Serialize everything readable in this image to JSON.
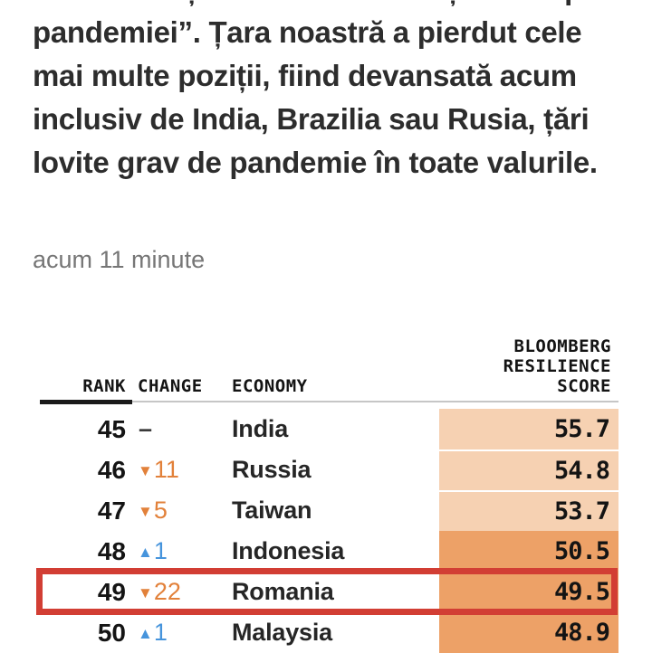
{
  "article": {
    "lines": [
      "bune/rele “țări în care să trăiești în timpul",
      "pandemiei”. Țara noastră a pierdut cele",
      "mai multe poziții, fiind devansată acum",
      "inclusiv de India, Brazilia sau Rusia, țări",
      "lovite grav de pandemie în toate valurile."
    ],
    "timestamp": "acum 11 minute"
  },
  "table": {
    "headers": {
      "rank": "RANK",
      "change": "CHANGE",
      "economy": "ECONOMY",
      "score_lines": [
        "BLOOMBERG",
        "RESILIENCE",
        "SCORE"
      ]
    },
    "rows": [
      {
        "rank": "45",
        "change": "–",
        "direction": "none",
        "economy": "India",
        "score": "55.7",
        "band": "light",
        "highlighted": false
      },
      {
        "rank": "46",
        "change": "11",
        "direction": "down",
        "economy": "Russia",
        "score": "54.8",
        "band": "light",
        "highlighted": false
      },
      {
        "rank": "47",
        "change": "5",
        "direction": "down",
        "economy": "Taiwan",
        "score": "53.7",
        "band": "light",
        "highlighted": false
      },
      {
        "rank": "48",
        "change": "1",
        "direction": "up",
        "economy": "Indonesia",
        "score": "50.5",
        "band": "dark",
        "highlighted": false
      },
      {
        "rank": "49",
        "change": "22",
        "direction": "down",
        "economy": "Romania",
        "score": "49.5",
        "band": "dark",
        "highlighted": true
      },
      {
        "rank": "50",
        "change": "1",
        "direction": "up",
        "economy": "Malaysia",
        "score": "48.9",
        "band": "dark",
        "highlighted": false
      }
    ],
    "colors": {
      "score_light": "#f6d1b2",
      "score_dark": "#eda167",
      "down_arrow": "#e2813a",
      "up_arrow": "#4694dc",
      "highlight_border": "#d23e34"
    }
  },
  "chart_data": {
    "type": "table",
    "title": "Bloomberg Resilience Score",
    "columns": [
      "RANK",
      "CHANGE",
      "ECONOMY",
      "BLOOMBERG RESILIENCE SCORE"
    ],
    "rows": [
      [
        45,
        "0",
        "India",
        55.7
      ],
      [
        46,
        "-11",
        "Russia",
        54.8
      ],
      [
        47,
        "-5",
        "Taiwan",
        53.7
      ],
      [
        48,
        "+1",
        "Indonesia",
        50.5
      ],
      [
        49,
        "-22",
        "Romania",
        49.5
      ],
      [
        50,
        "+1",
        "Malaysia",
        48.9
      ]
    ]
  }
}
